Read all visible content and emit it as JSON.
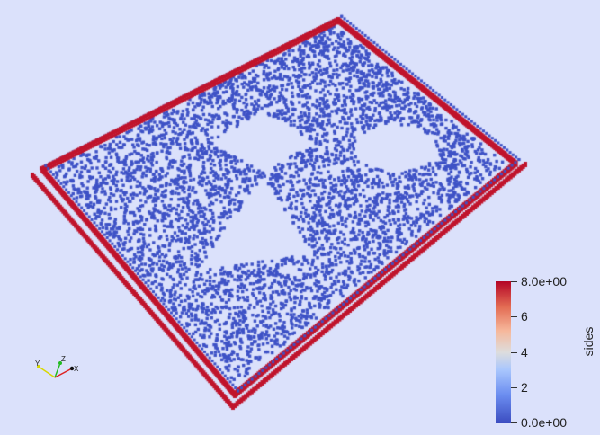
{
  "scalar_bar": {
    "title": "sides",
    "labels": [
      "8.0e+00",
      "6",
      "4",
      "2",
      "0.0e+00"
    ],
    "range": [
      0,
      8
    ],
    "colors": {
      "low": "#3b4cc0",
      "mid": "#dddddd",
      "high": "#b40426"
    }
  },
  "axes": {
    "x": "X",
    "y": "Y",
    "z": "Z"
  },
  "colors": {
    "background": "#dbe1fb",
    "interior": "#3e52c6",
    "boundary": "#c0142c"
  }
}
